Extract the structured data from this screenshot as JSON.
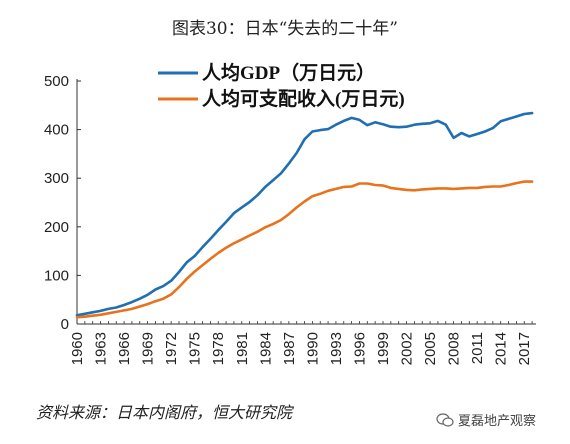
{
  "title": "图表30：日本“失去的二十年”",
  "source": "资料来源：日本内阁府，恒大研究院",
  "watermark": "夏磊地产观察",
  "chart_data": {
    "type": "line",
    "x": [
      1960,
      1961,
      1962,
      1963,
      1964,
      1965,
      1966,
      1967,
      1968,
      1969,
      1970,
      1971,
      1972,
      1973,
      1974,
      1975,
      1976,
      1977,
      1978,
      1979,
      1980,
      1981,
      1982,
      1983,
      1984,
      1985,
      1986,
      1987,
      1988,
      1989,
      1990,
      1991,
      1992,
      1993,
      1994,
      1995,
      1996,
      1997,
      1998,
      1999,
      2000,
      2001,
      2002,
      2003,
      2004,
      2005,
      2006,
      2007,
      2008,
      2009,
      2010,
      2011,
      2012,
      2013,
      2014,
      2015,
      2016,
      2017,
      2018
    ],
    "xticks": [
      "1960",
      "1963",
      "1966",
      "1969",
      "1972",
      "1975",
      "1978",
      "1981",
      "1984",
      "1987",
      "1990",
      "1993",
      "1996",
      "1999",
      "2002",
      "2005",
      "2008",
      "2011",
      "2014",
      "2017"
    ],
    "yticks": [
      "0",
      "100",
      "200",
      "300",
      "400",
      "500"
    ],
    "ylim": [
      0,
      500
    ],
    "legend_position": "top-center",
    "grid": false,
    "series": [
      {
        "name": "人均GDP（万日元）",
        "color": "#1f6fb2",
        "values": [
          18,
          21,
          24,
          27,
          31,
          34,
          39,
          45,
          52,
          60,
          71,
          78,
          89,
          107,
          127,
          140,
          158,
          175,
          193,
          210,
          228,
          240,
          251,
          265,
          282,
          296,
          310,
          330,
          352,
          380,
          396,
          399,
          401,
          410,
          418,
          424,
          420,
          409,
          415,
          411,
          406,
          405,
          406,
          410,
          412,
          413,
          418,
          410,
          383,
          393,
          386,
          391,
          396,
          403,
          417,
          422,
          427,
          432,
          434
        ],
        "ndata_note": ""
      },
      {
        "name": "人均可支配收入(万日元)",
        "color": "#e8731c",
        "values": [
          14,
          15,
          17,
          19,
          22,
          25,
          28,
          31,
          36,
          41,
          47,
          52,
          61,
          76,
          93,
          108,
          121,
          134,
          146,
          157,
          166,
          174,
          182,
          190,
          199,
          206,
          214,
          226,
          240,
          252,
          263,
          268,
          274,
          278,
          282,
          283,
          289,
          289,
          286,
          285,
          280,
          278,
          276,
          275,
          277,
          278,
          279,
          279,
          278,
          279,
          280,
          280,
          282,
          283,
          283,
          286,
          290,
          293,
          293
        ]
      }
    ]
  }
}
